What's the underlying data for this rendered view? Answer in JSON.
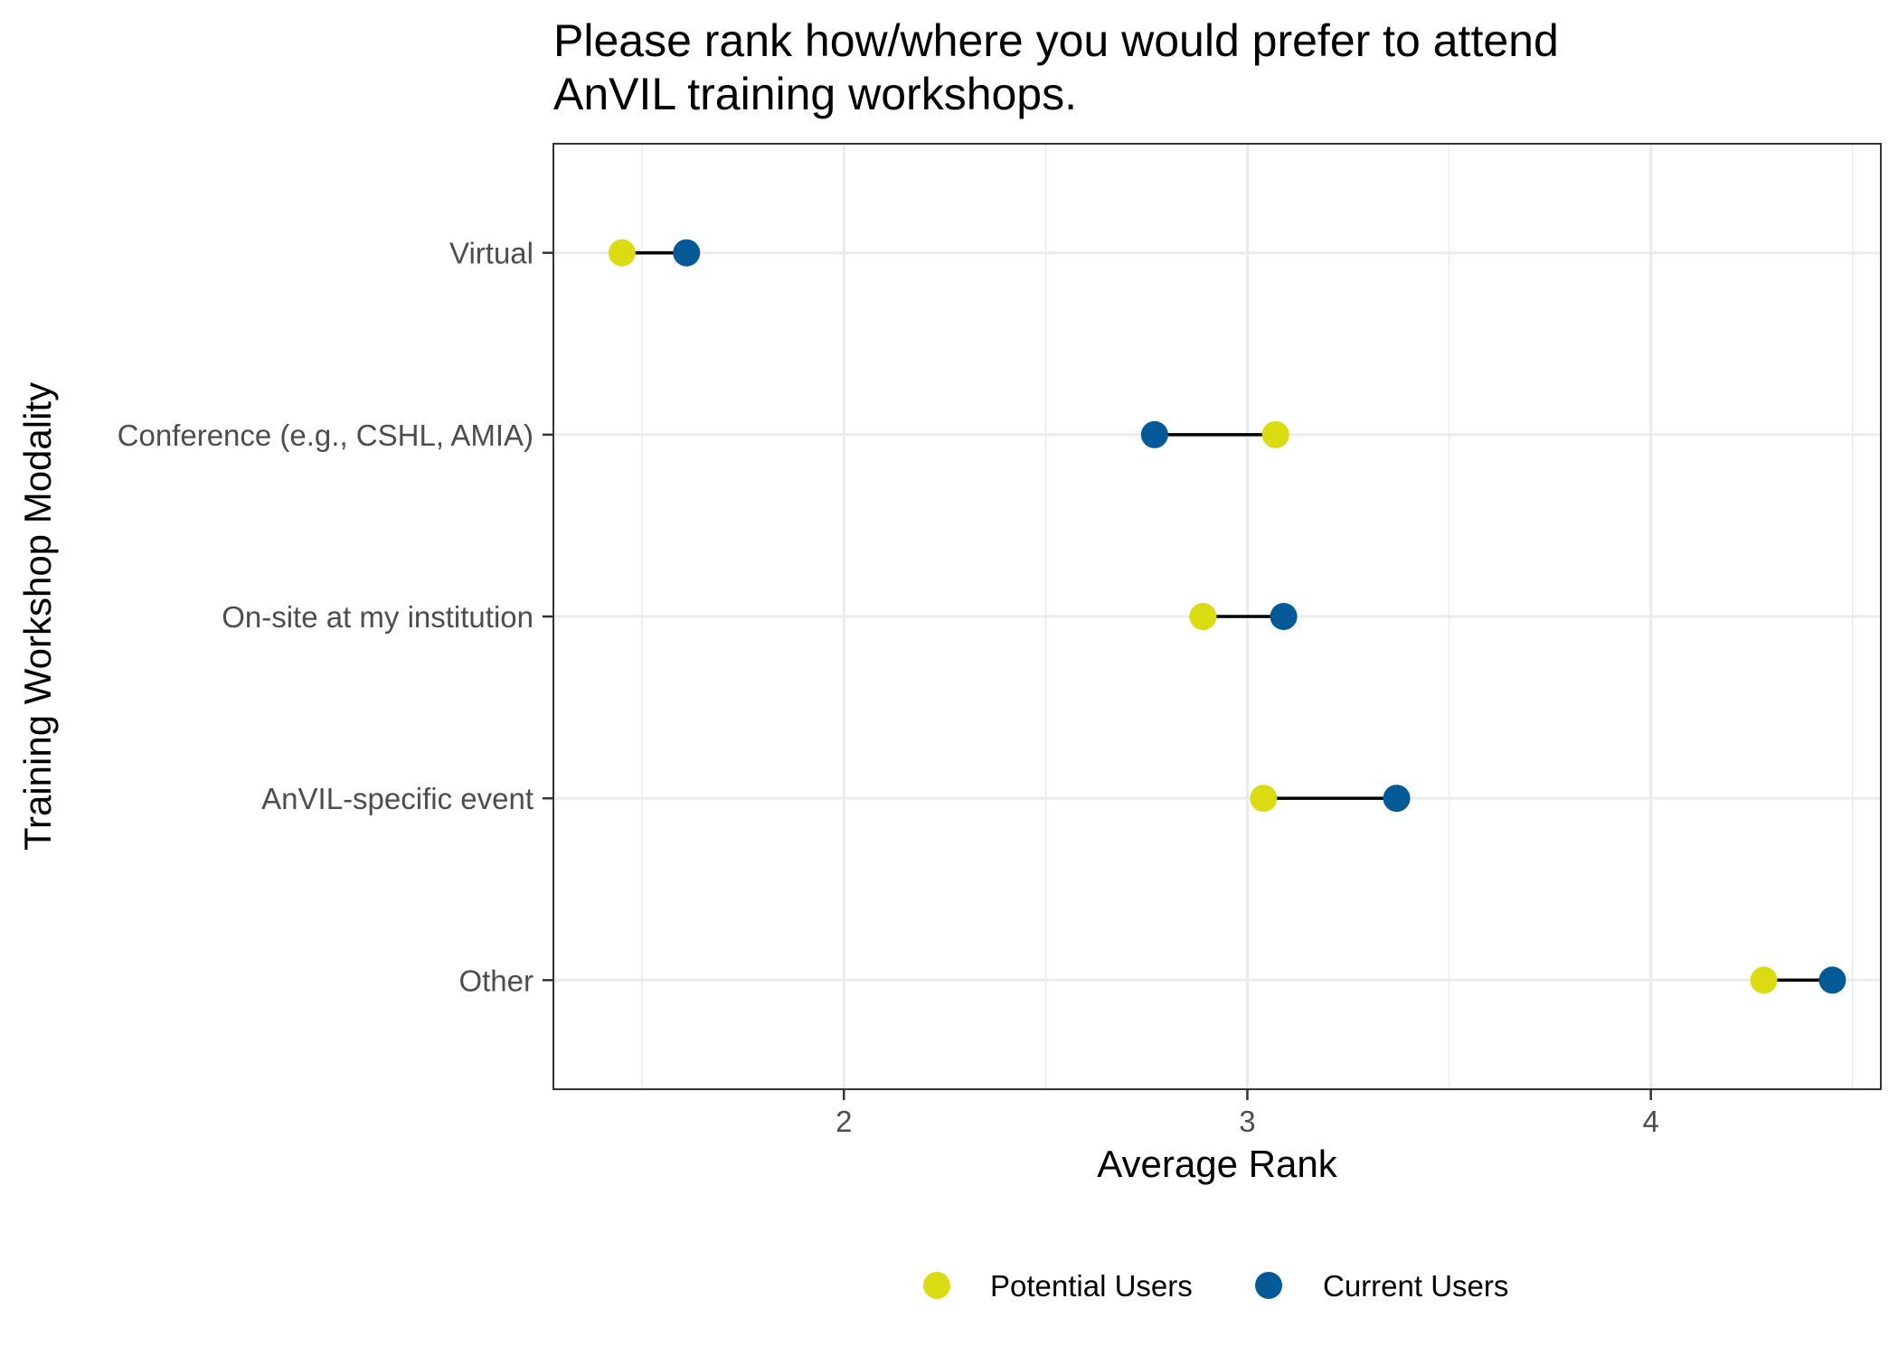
{
  "chart_data": {
    "type": "dumbbell",
    "title_lines": [
      "Please rank how/where you would prefer to attend",
      "AnVIL training workshops."
    ],
    "xlabel": "Average Rank",
    "ylabel": "Training Workshop Modality",
    "xlim": [
      1.28,
      4.57
    ],
    "x_ticks": [
      2,
      3,
      4
    ],
    "x_tick_labels": [
      "2",
      "3",
      "4"
    ],
    "categories": [
      "Virtual",
      "Conference (e.g., CSHL, AMIA)",
      "On-site at my institution",
      "AnVIL-specific event",
      "Other"
    ],
    "series": [
      {
        "name": "Potential Users",
        "color": "#dbdb12",
        "values": [
          1.45,
          3.07,
          2.89,
          3.04,
          4.28
        ]
      },
      {
        "name": "Current Users",
        "color": "#045a96",
        "values": [
          1.61,
          2.77,
          3.09,
          3.37,
          4.45
        ]
      }
    ],
    "legend_position": "bottom",
    "grid": true,
    "connector_color": "#000000",
    "theme": "bw"
  }
}
